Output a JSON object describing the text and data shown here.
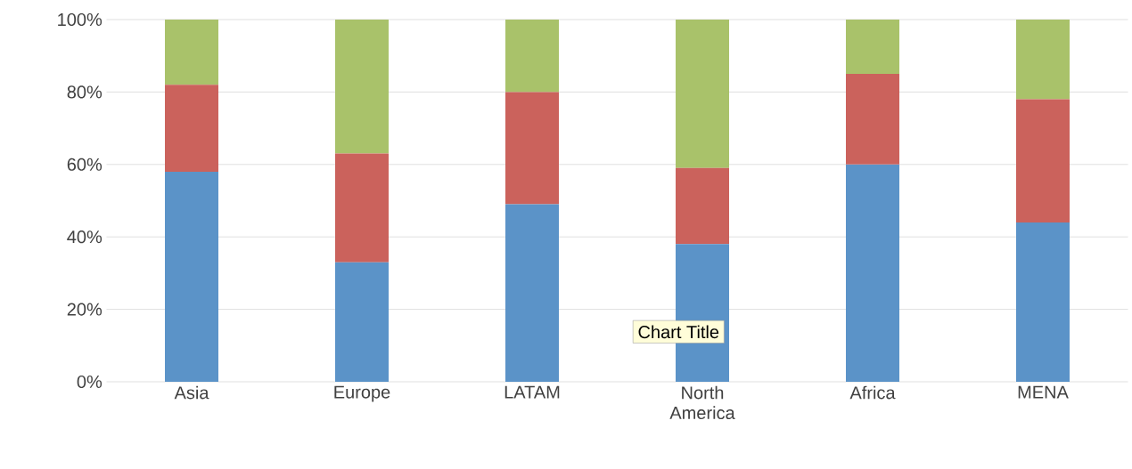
{
  "chart_data": {
    "type": "bar",
    "stacked": true,
    "categories": [
      "Asia",
      "Europe",
      "LATAM",
      "North America",
      "Africa",
      "MENA"
    ],
    "series": [
      {
        "color": "#5b93c8",
        "values": [
          58,
          33,
          49,
          38,
          60,
          44
        ]
      },
      {
        "color": "#cb625c",
        "values": [
          24,
          30,
          31,
          21,
          25,
          34
        ]
      },
      {
        "color": "#a9c26a",
        "values": [
          18,
          37,
          20,
          41,
          15,
          22
        ]
      }
    ],
    "ylim": [
      0,
      100
    ],
    "yticks": [
      {
        "value": 0,
        "label": "0%"
      },
      {
        "value": 20,
        "label": "20%"
      },
      {
        "value": 40,
        "label": "40%"
      },
      {
        "value": 60,
        "label": "60%"
      },
      {
        "value": 80,
        "label": "80%"
      },
      {
        "value": 100,
        "label": "100%"
      }
    ],
    "grid": "y",
    "annotations": [
      "Chart Title"
    ]
  }
}
